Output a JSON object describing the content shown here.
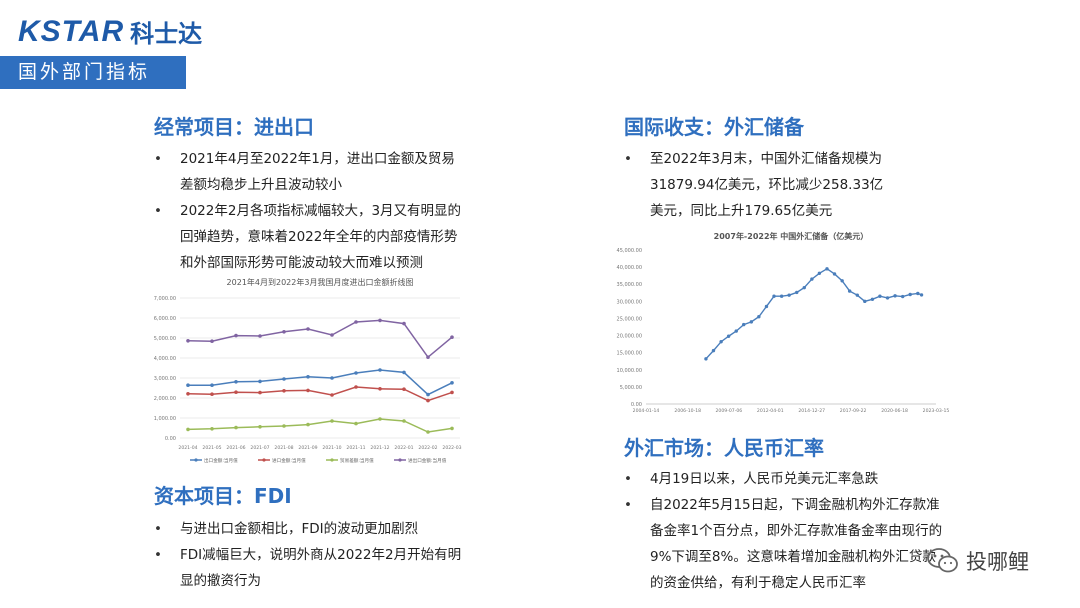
{
  "header": {
    "logo_en": "KSTAR",
    "logo_cn": "科士达",
    "banner": "国外部门指标",
    "brand_color": "#1e5aa8",
    "banner_color": "#2f6fbf"
  },
  "left": {
    "section1": {
      "title": "经常项目：进出口",
      "bullets": [
        "2021年4月至2022年1月，进出口金额及贸易差额均稳步上升且波动较小",
        "2022年2月各项指标减幅较大，3月又有明显的回弹趋势，意味着2022年全年的内部疫情形势和外部国际形势可能波动较大而难以预测"
      ]
    },
    "section2": {
      "title": "资本项目：FDI",
      "bullets": [
        "与进出口金额相比，FDI的波动更加剧烈",
        "FDI减幅巨大，说明外商从2022年2月开始有明显的撤资行为"
      ]
    }
  },
  "right": {
    "section1": {
      "title": "国际收支：外汇储备",
      "bullets": [
        "至2022年3月末，中国外汇储备规模为31879.94亿美元，环比减少258.33亿美元，同比上升179.65亿美元"
      ]
    },
    "section2": {
      "title": "外汇市场：人民币汇率",
      "bullets": [
        "4月19日以来，人民币兑美元汇率急跌",
        "自2022年5月15日起，下调金融机构外汇存款准备金率1个百分点，即外汇存款准备金率由现行的9%下调至8%。这意味着增加金融机构外汇贷款的资金供给，有利于稳定人民币汇率"
      ]
    }
  },
  "watermark": {
    "text": "投哪鲤",
    "icon": "wechat-icon"
  },
  "chart_data": [
    {
      "type": "line",
      "title": "2021年4月到2022年3月我国月度进出口金额折线图",
      "categories": [
        "2021-04",
        "2021-05",
        "2021-06",
        "2021-07",
        "2021-08",
        "2021-09",
        "2021-10",
        "2021-11",
        "2021-12",
        "2022-01",
        "2022-02",
        "2022-03"
      ],
      "ylim": [
        0,
        7000
      ],
      "yticks": [
        "0.00",
        "1,000.00",
        "2,000.00",
        "3,000.00",
        "4,000.00",
        "5,000.00",
        "6,000.00",
        "7,000.00"
      ],
      "grid": true,
      "legend_position": "bottom",
      "series": [
        {
          "name": "出口金额:当月值",
          "color": "#4a7ebb",
          "values": [
            2640,
            2640,
            2810,
            2830,
            2950,
            3060,
            3000,
            3250,
            3400,
            3280,
            2170,
            2760
          ]
        },
        {
          "name": "进口金额:当月值",
          "color": "#c0504d",
          "values": [
            2210,
            2190,
            2290,
            2270,
            2360,
            2380,
            2150,
            2550,
            2460,
            2440,
            1870,
            2280
          ]
        },
        {
          "name": "贸易差额:当月值",
          "color": "#9bbb59",
          "values": [
            430,
            460,
            520,
            560,
            600,
            670,
            850,
            720,
            950,
            850,
            300,
            480
          ]
        },
        {
          "name": "进出口金额:当月值",
          "color": "#8064a2",
          "values": [
            4860,
            4840,
            5120,
            5100,
            5310,
            5450,
            5150,
            5800,
            5880,
            5720,
            4040,
            5040
          ]
        }
      ]
    },
    {
      "type": "line",
      "title": "2007年-2022年 中国外汇储备（亿美元）",
      "xlim": [
        "2004-01-14",
        "2023-03-15"
      ],
      "xticks": [
        "2004-01-14",
        "2006-10-18",
        "2009-07-06",
        "2012-04-01",
        "2014-12-27",
        "2017-09-22",
        "2020-06-18",
        "2023-03-15"
      ],
      "ylim": [
        0,
        45000
      ],
      "yticks": [
        "0.00",
        "5,000.00",
        "10,000.00",
        "15,000.00",
        "20,000.00",
        "25,000.00",
        "30,000.00",
        "35,000.00",
        "40,000.00",
        "45,000.00"
      ],
      "grid": false,
      "series": [
        {
          "name": "",
          "color": "#4a7ebb",
          "x": [
            "2007-12-31",
            "2008-06-30",
            "2008-12-31",
            "2009-06-30",
            "2009-12-31",
            "2010-06-30",
            "2010-12-31",
            "2011-06-30",
            "2011-12-31",
            "2012-06-30",
            "2012-12-31",
            "2013-06-30",
            "2013-12-31",
            "2014-06-30",
            "2014-12-31",
            "2015-06-30",
            "2015-12-31",
            "2016-06-30",
            "2016-12-31",
            "2017-06-30",
            "2017-12-31",
            "2018-06-30",
            "2018-12-31",
            "2019-06-30",
            "2019-12-31",
            "2020-06-30",
            "2020-12-31",
            "2021-06-30",
            "2021-12-31",
            "2022-03-31"
          ],
          "values": [
            13200,
            15600,
            18200,
            19800,
            21300,
            23200,
            24000,
            25500,
            28500,
            31500,
            31500,
            31800,
            32600,
            34000,
            36500,
            38200,
            39500,
            38000,
            36000,
            33000,
            31800,
            30000,
            30600,
            31500,
            31000,
            31600,
            31400,
            32000,
            32300,
            31880
          ]
        }
      ]
    }
  ]
}
